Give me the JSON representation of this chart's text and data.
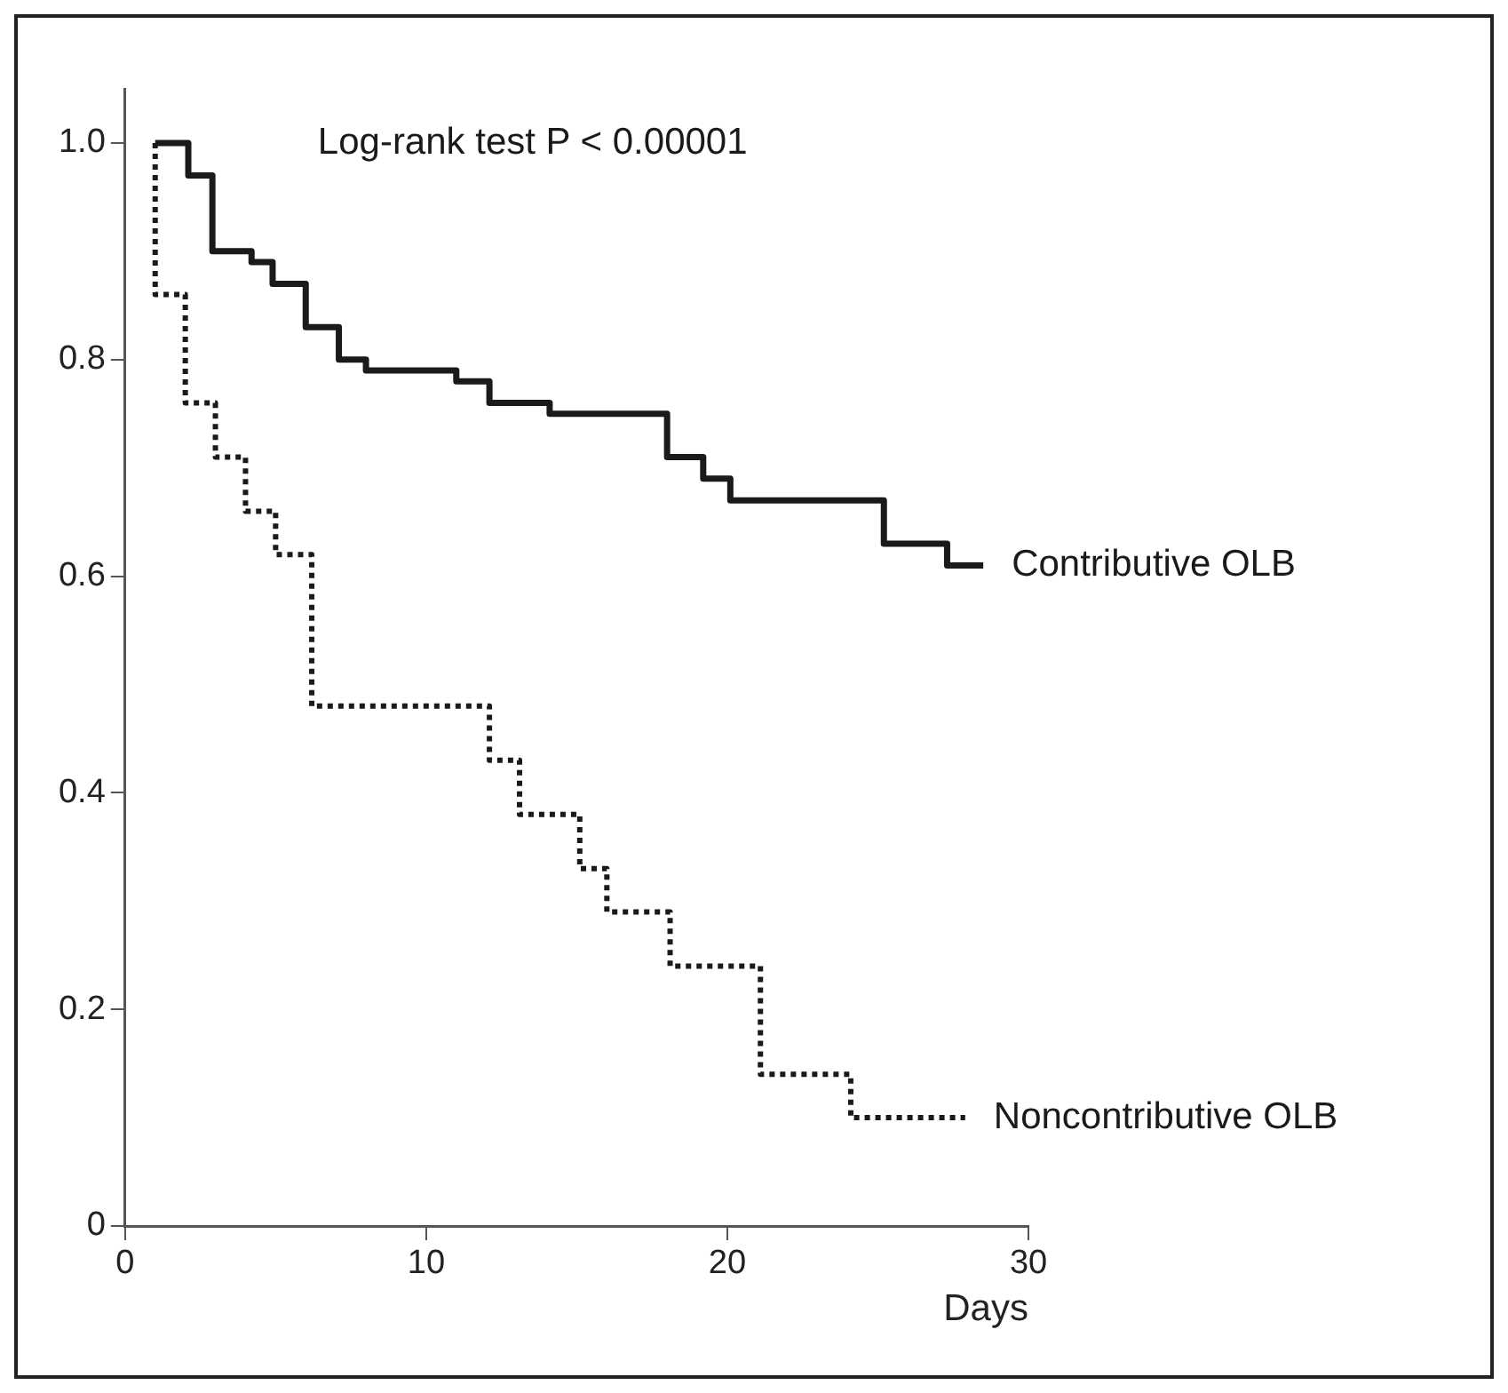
{
  "chart_data": {
    "type": "step",
    "xlabel": "Days",
    "annotations": [
      "Log-rank test P < 0.00001"
    ],
    "xlim": [
      0,
      30
    ],
    "xticks": [
      0,
      10,
      20,
      30
    ],
    "ylim": [
      0,
      1.05
    ],
    "yticks": [
      0,
      0.2,
      0.4,
      0.6,
      0.8,
      {
        "value": 1,
        "label": "1.0"
      }
    ],
    "grid": false,
    "legend": false,
    "marker": "none",
    "series": [
      {
        "name": "Contributive OLB",
        "color": "#1a1a1a",
        "line_style": "solid",
        "x": [
          1,
          2.1,
          2.9,
          4.2,
          4.9,
          6,
          7.1,
          8,
          11,
          12.1,
          14.1,
          18,
          19.2,
          20.1,
          25.2,
          27.3,
          28.5
        ],
        "values": [
          1,
          0.97,
          0.9,
          0.89,
          0.87,
          0.83,
          0.8,
          0.79,
          0.78,
          0.76,
          0.75,
          0.71,
          0.69,
          0.67,
          0.63,
          0.61,
          0.61
        ]
      },
      {
        "name": "Noncontributive OLB",
        "color": "#1a1a1a",
        "line_style": "dotted",
        "x": [
          1,
          1,
          2,
          3,
          4,
          5,
          6.2,
          12.1,
          13.1,
          15.1,
          16,
          18.1,
          21.1,
          24.1,
          27.9
        ],
        "values": [
          1,
          0.86,
          0.76,
          0.71,
          0.66,
          0.62,
          0.48,
          0.43,
          0.38,
          0.33,
          0.29,
          0.24,
          0.14,
          0.1,
          0.1
        ]
      }
    ]
  }
}
